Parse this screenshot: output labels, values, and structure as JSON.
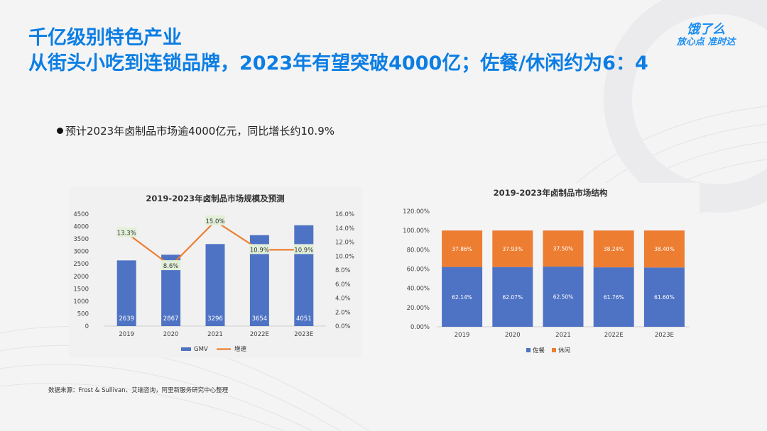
{
  "slide": {
    "title_line1": "千亿级别特色产业",
    "title_line2": "从街头小吃到连锁品牌，2023年有望突破4000亿；佐餐/休闲约为6：4",
    "bullet": "预计2023年卤制品市场逾4000亿元，同比增长约10.9%",
    "source": "数据来源：Frost & Sullivan、艾瑞咨询，阿里新服务研究中心整理"
  },
  "logo": {
    "brand": "饿了么",
    "slogan": "放心点 准时达",
    "color": "#1a8ef2"
  },
  "colors": {
    "title": "#0c7ee3",
    "bar_blue": "#4f73c4",
    "line_orange": "#ed7d31",
    "label_bg": "#e2efd9"
  },
  "chart_data": [
    {
      "type": "bar",
      "title": "2019-2023年卤制品市场规模及预测",
      "categories": [
        "2019",
        "2020",
        "2021",
        "2022E",
        "2023E"
      ],
      "series": [
        {
          "name": "GMV",
          "type": "bar",
          "axis": "left",
          "values": [
            2639,
            2867,
            3296,
            3654,
            4051
          ]
        },
        {
          "name": "增速",
          "type": "line",
          "axis": "right",
          "values": [
            13.3,
            8.6,
            15.0,
            10.9,
            10.9
          ],
          "labels": [
            "13.3%",
            "8.6%",
            "15.0%",
            "10.9%",
            "10.9%"
          ]
        }
      ],
      "y_left": {
        "range": [
          0,
          4500
        ],
        "ticks": [
          "0",
          "500",
          "1000",
          "1500",
          "2000",
          "2500",
          "3000",
          "3500",
          "4000",
          "4500"
        ]
      },
      "y_right": {
        "range": [
          0,
          16
        ],
        "ticks": [
          "0.0%",
          "2.0%",
          "4.0%",
          "6.0%",
          "8.0%",
          "10.0%",
          "12.0%",
          "14.0%",
          "16.0%"
        ]
      },
      "legend_position": "bottom",
      "grid": false
    },
    {
      "type": "bar",
      "stacked": true,
      "title": "2019-2023年卤制品市场结构",
      "categories": [
        "2019",
        "2020",
        "2021",
        "2022E",
        "2023E"
      ],
      "series": [
        {
          "name": "佐餐",
          "values": [
            62.14,
            62.07,
            62.5,
            61.76,
            61.6
          ],
          "labels": [
            "62.14%",
            "62.07%",
            "62.50%",
            "61.76%",
            "61.60%"
          ]
        },
        {
          "name": "休闲",
          "values": [
            37.86,
            37.93,
            37.5,
            38.24,
            38.4
          ],
          "labels": [
            "37.86%",
            "37.93%",
            "37.50%",
            "38.24%",
            "38.40%"
          ]
        }
      ],
      "y": {
        "range": [
          0,
          120
        ],
        "ticks": [
          "0.00%",
          "20.00%",
          "40.00%",
          "60.00%",
          "80.00%",
          "100.00%",
          "120.00%"
        ]
      },
      "legend_position": "bottom",
      "grid": false
    }
  ]
}
